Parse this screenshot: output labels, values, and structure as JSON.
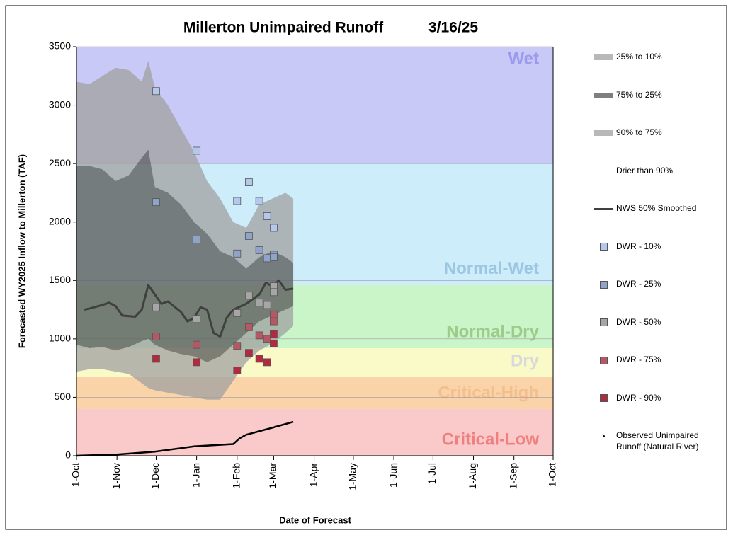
{
  "chart_data": {
    "type": "area",
    "title": "Millerton Unimpaired Runoff",
    "subtitle": "3/16/25",
    "xlabel": "Date of Forecast",
    "ylabel": "Forecasted WY2025 Inflow to Millerton (TAF)",
    "xlim": [
      0,
      365
    ],
    "xticks": [
      {
        "value": 0,
        "label": "1-Oct"
      },
      {
        "value": 31,
        "label": "1-Nov"
      },
      {
        "value": 61,
        "label": "1-Dec"
      },
      {
        "value": 92,
        "label": "1-Jan"
      },
      {
        "value": 123,
        "label": "1-Feb"
      },
      {
        "value": 151,
        "label": "1-Mar"
      },
      {
        "value": 182,
        "label": "1-Apr"
      },
      {
        "value": 212,
        "label": "1-May"
      },
      {
        "value": 243,
        "label": "1-Jun"
      },
      {
        "value": 273,
        "label": "1-Jul"
      },
      {
        "value": 304,
        "label": "1-Aug"
      },
      {
        "value": 335,
        "label": "1-Sep"
      },
      {
        "value": 365,
        "label": "1-Oct"
      }
    ],
    "ylim": [
      0,
      3500
    ],
    "yticks": [
      0,
      500,
      1000,
      1500,
      2000,
      2500,
      3000,
      3500
    ],
    "zones": [
      {
        "label": "Wet",
        "from": 2500,
        "to": 3500,
        "color": "#c9c9f7",
        "label_color": "#9a9aee"
      },
      {
        "label": "Normal-Wet",
        "from": 1460,
        "to": 2500,
        "color": "#cdedfb",
        "label_color": "#9cc6e2"
      },
      {
        "label": "Normal-Dry",
        "from": 920,
        "to": 1460,
        "color": "#c9f5c9",
        "label_color": "#9ccc8a"
      },
      {
        "label": "Dry",
        "from": 672,
        "to": 920,
        "color": "#fafac9",
        "label_color": "#d9d9d9"
      },
      {
        "label": "Critical-High",
        "from": 400,
        "to": 672,
        "color": "#fad3a8",
        "label_color": "#f3bf8c"
      },
      {
        "label": "Critical-Low",
        "from": 0,
        "to": 400,
        "color": "#fac9c9",
        "label_color": "#f07f7f"
      }
    ],
    "x": [
      0,
      10,
      20,
      30,
      40,
      50,
      55,
      60,
      70,
      80,
      90,
      100,
      110,
      120,
      130,
      140,
      150,
      160,
      166
    ],
    "bands": [
      {
        "name": "25% to 10%",
        "color": "rgba(160,160,160,0.75)",
        "upper": [
          3200,
          3180,
          3250,
          3320,
          3300,
          3200,
          3380,
          3150,
          3000,
          2800,
          2600,
          2350,
          2200,
          2000,
          1950,
          2150,
          2200,
          2250,
          2200
        ],
        "lower": [
          2480,
          2480,
          2450,
          2350,
          2400,
          2550,
          2620,
          2300,
          2250,
          2150,
          2000,
          1900,
          1750,
          1700,
          1600,
          1700,
          1750,
          1700,
          1650
        ]
      },
      {
        "name": "75% to 25%",
        "color": "rgba(95,95,95,0.8)",
        "upper": [
          2480,
          2480,
          2450,
          2350,
          2400,
          2550,
          2620,
          2300,
          2250,
          2150,
          2000,
          1900,
          1750,
          1700,
          1600,
          1700,
          1750,
          1700,
          1650
        ],
        "lower": [
          950,
          920,
          930,
          900,
          930,
          980,
          1000,
          950,
          900,
          870,
          850,
          800,
          850,
          950,
          1050,
          1150,
          1200,
          1250,
          1280
        ]
      },
      {
        "name": "90% to 75%",
        "color": "rgba(160,160,160,0.75)",
        "upper": [
          950,
          920,
          930,
          900,
          930,
          980,
          1000,
          950,
          900,
          870,
          850,
          800,
          850,
          950,
          1050,
          1150,
          1200,
          1250,
          1280
        ],
        "lower": [
          720,
          740,
          740,
          720,
          700,
          620,
          580,
          560,
          540,
          520,
          500,
          480,
          480,
          640,
          800,
          900,
          960,
          1050,
          1110
        ]
      },
      {
        "name": "Drier than 90%",
        "color": "#ffffff"
      }
    ],
    "lines": [
      {
        "name": "NWS 50% Smoothed",
        "color": "#404040",
        "x": [
          6,
          10,
          20,
          25,
          30,
          35,
          45,
          50,
          55,
          60,
          65,
          70,
          80,
          85,
          90,
          95,
          100,
          105,
          110,
          115,
          120,
          130,
          140,
          145,
          150,
          155,
          160,
          166
        ],
        "values": [
          1250,
          1260,
          1290,
          1310,
          1280,
          1200,
          1190,
          1250,
          1460,
          1380,
          1300,
          1320,
          1230,
          1150,
          1180,
          1270,
          1250,
          1050,
          1020,
          1180,
          1250,
          1300,
          1380,
          1480,
          1450,
          1500,
          1420,
          1430
        ]
      }
    ],
    "points": [
      {
        "name": "DWR - 10%",
        "color": "#b4c8ec",
        "x": [
          61,
          92,
          123,
          132,
          140,
          146,
          151
        ],
        "values": [
          3120,
          2610,
          2180,
          2340,
          2180,
          2050,
          1950
        ]
      },
      {
        "name": "DWR - 25%",
        "color": "#8fa4c8",
        "x": [
          61,
          92,
          123,
          132,
          140,
          146,
          151,
          151
        ],
        "values": [
          2170,
          1850,
          1730,
          1880,
          1760,
          1690,
          1720,
          1700
        ]
      },
      {
        "name": "DWR - 50%",
        "color": "#a6a6a6",
        "x": [
          61,
          92,
          123,
          132,
          140,
          146,
          151,
          151
        ],
        "values": [
          1270,
          1170,
          1220,
          1370,
          1310,
          1290,
          1450,
          1400
        ]
      },
      {
        "name": "DWR - 75%",
        "color": "#b45866",
        "x": [
          61,
          92,
          123,
          132,
          140,
          146,
          151,
          151
        ],
        "values": [
          1020,
          950,
          940,
          1100,
          1030,
          1000,
          1210,
          1150
        ]
      },
      {
        "name": "DWR - 90%",
        "color": "#b02a40",
        "x": [
          61,
          92,
          123,
          132,
          140,
          146,
          151,
          151
        ],
        "values": [
          830,
          800,
          730,
          880,
          830,
          800,
          1040,
          960
        ]
      }
    ],
    "observed": {
      "name": "Observed Unimpaired Runoff (Natural River)",
      "color": "#000000",
      "x": [
        0,
        30,
        60,
        90,
        120,
        125,
        130,
        150,
        166
      ],
      "values": [
        0,
        10,
        35,
        80,
        100,
        150,
        180,
        240,
        290
      ]
    }
  }
}
